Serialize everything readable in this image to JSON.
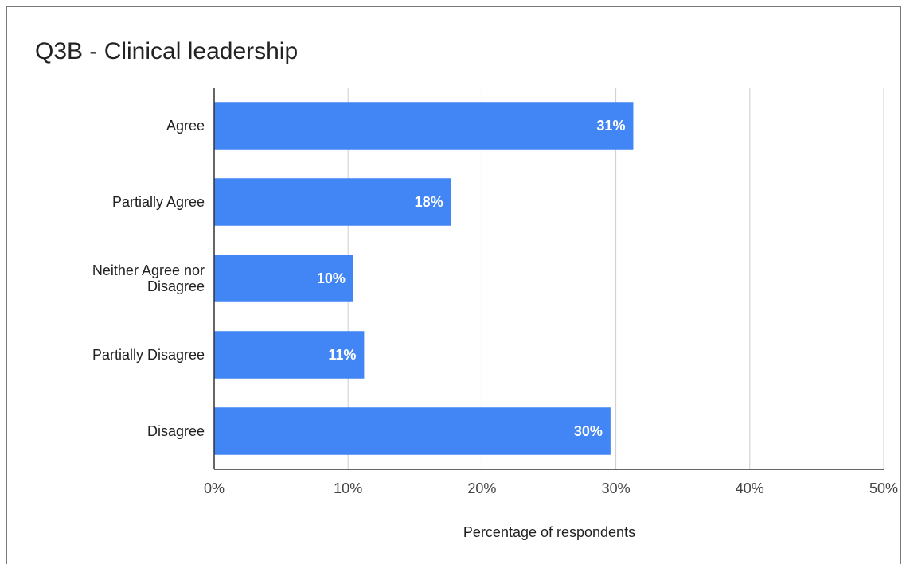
{
  "chart_data": {
    "type": "bar",
    "orientation": "horizontal",
    "title": "Q3B - Clinical leadership",
    "xlabel": "Percentage of respondents",
    "ylabel": "",
    "categories": [
      "Agree",
      "Partially Agree",
      "Neither Agree nor Disagree",
      "Partially Disagree",
      "Disagree"
    ],
    "category_lines": [
      [
        "Agree"
      ],
      [
        "Partially Agree"
      ],
      [
        "Neither Agree nor",
        "Disagree"
      ],
      [
        "Partially Disagree"
      ],
      [
        "Disagree"
      ]
    ],
    "values": [
      31.3,
      17.7,
      10.4,
      11.2,
      29.6
    ],
    "data_labels": [
      "31%",
      "18%",
      "10%",
      "11%",
      "30%"
    ],
    "xlim": [
      0,
      50
    ],
    "ticks": [
      0,
      10,
      20,
      30,
      40,
      50
    ],
    "tick_labels": [
      "0%",
      "10%",
      "20%",
      "30%",
      "40%",
      "50%"
    ],
    "grid": true,
    "bar_color": "#4285f4"
  }
}
